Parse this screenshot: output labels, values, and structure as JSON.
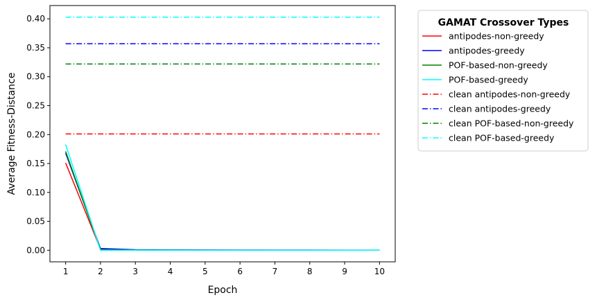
{
  "chart_data": {
    "type": "line",
    "xlabel": "Epoch",
    "ylabel": "Average Fitness-Distance",
    "xlim": [
      0.55,
      10.45
    ],
    "ylim": [
      -0.02,
      0.423
    ],
    "x": [
      1,
      2,
      3,
      4,
      5,
      6,
      7,
      8,
      9,
      10
    ],
    "xticks": [
      "1",
      "2",
      "3",
      "4",
      "5",
      "6",
      "7",
      "8",
      "9",
      "10"
    ],
    "yticks": [
      0.0,
      0.05,
      0.1,
      0.15,
      0.2,
      0.25,
      0.3,
      0.35,
      0.4
    ],
    "ytick_labels": [
      "0.00",
      "0.05",
      "0.10",
      "0.15",
      "0.20",
      "0.25",
      "0.30",
      "0.35",
      "0.40"
    ],
    "grid": false,
    "legend": {
      "title": "GAMAT Crossover Types",
      "placement": "outside-upper-right"
    },
    "series": [
      {
        "name": "antipodes-non-greedy",
        "color": "#ff0000",
        "style": "solid",
        "values": [
          0.151,
          0.002,
          0.0005,
          0.0003,
          0.0002,
          0.0002,
          0.0001,
          0.0001,
          0.0001,
          0.0001
        ]
      },
      {
        "name": "antipodes-greedy",
        "color": "#0000ff",
        "style": "solid",
        "values": [
          0.168,
          0.003,
          0.001,
          0.0007,
          0.0005,
          0.0004,
          0.0003,
          0.0003,
          0.0002,
          0.0002
        ]
      },
      {
        "name": "POF-based-non-greedy",
        "color": "#008000",
        "style": "solid",
        "values": [
          0.171,
          0.001,
          0.0003,
          0.0002,
          0.0001,
          0.0001,
          0.0001,
          0.0001,
          0.0001,
          0.0001
        ]
      },
      {
        "name": "POF-based-greedy",
        "color": "#00ffff",
        "style": "solid",
        "values": [
          0.183,
          0.0,
          0.0,
          0.0,
          0.0,
          0.0,
          0.0,
          0.0,
          0.0,
          0.0
        ]
      },
      {
        "name": "clean antipodes-non-greedy",
        "color": "#ff0000",
        "style": "dashdot",
        "values": [
          0.201,
          0.201,
          0.201,
          0.201,
          0.201,
          0.201,
          0.201,
          0.201,
          0.201,
          0.201
        ]
      },
      {
        "name": "clean antipodes-greedy",
        "color": "#0000ff",
        "style": "dashdot",
        "values": [
          0.357,
          0.357,
          0.357,
          0.357,
          0.357,
          0.357,
          0.357,
          0.357,
          0.357,
          0.357
        ]
      },
      {
        "name": "clean POF-based-non-greedy",
        "color": "#008000",
        "style": "dashdot",
        "values": [
          0.322,
          0.322,
          0.322,
          0.322,
          0.322,
          0.322,
          0.322,
          0.322,
          0.322,
          0.322
        ]
      },
      {
        "name": "clean POF-based-greedy",
        "color": "#00ffff",
        "style": "dashdot",
        "values": [
          0.403,
          0.403,
          0.403,
          0.403,
          0.403,
          0.403,
          0.403,
          0.403,
          0.403,
          0.403
        ]
      }
    ]
  }
}
